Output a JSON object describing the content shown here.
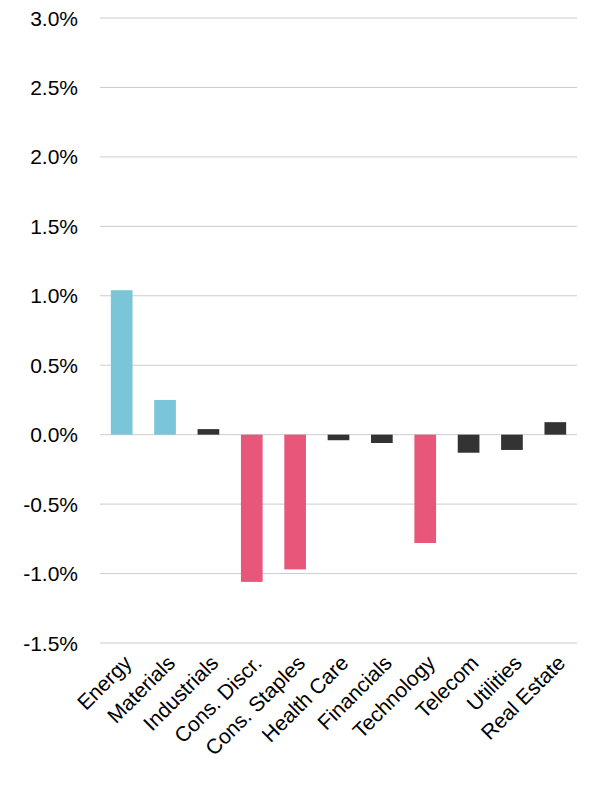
{
  "chart_data": {
    "type": "bar",
    "categories": [
      "Energy",
      "Materials",
      "Industrials",
      "Cons. Discr.",
      "Cons. Staples",
      "Health Care",
      "Financials",
      "Technology",
      "Telecom",
      "Utilities",
      "Real Estate"
    ],
    "values": [
      1.04,
      0.25,
      0.04,
      -1.06,
      -0.97,
      -0.04,
      -0.06,
      -0.78,
      -0.13,
      -0.11,
      0.09
    ],
    "colors": [
      "#7ac5d8",
      "#7ac5d8",
      "#333333",
      "#e8567a",
      "#e8567a",
      "#333333",
      "#333333",
      "#e8567a",
      "#333333",
      "#333333",
      "#333333"
    ],
    "ylim": [
      -1.5,
      3.0
    ],
    "yticks": [
      {
        "value": -1.5,
        "label": "-1.5%"
      },
      {
        "value": -1.0,
        "label": "-1.0%"
      },
      {
        "value": -0.5,
        "label": "-0.5%"
      },
      {
        "value": 0.0,
        "label": "0.0%"
      },
      {
        "value": 0.5,
        "label": "0.5%"
      },
      {
        "value": 1.0,
        "label": "1.0%"
      },
      {
        "value": 1.5,
        "label": "1.5%"
      },
      {
        "value": 2.0,
        "label": "2.0%"
      },
      {
        "value": 2.5,
        "label": "2.5%"
      },
      {
        "value": 3.0,
        "label": "3.0%"
      }
    ],
    "grid": true
  }
}
